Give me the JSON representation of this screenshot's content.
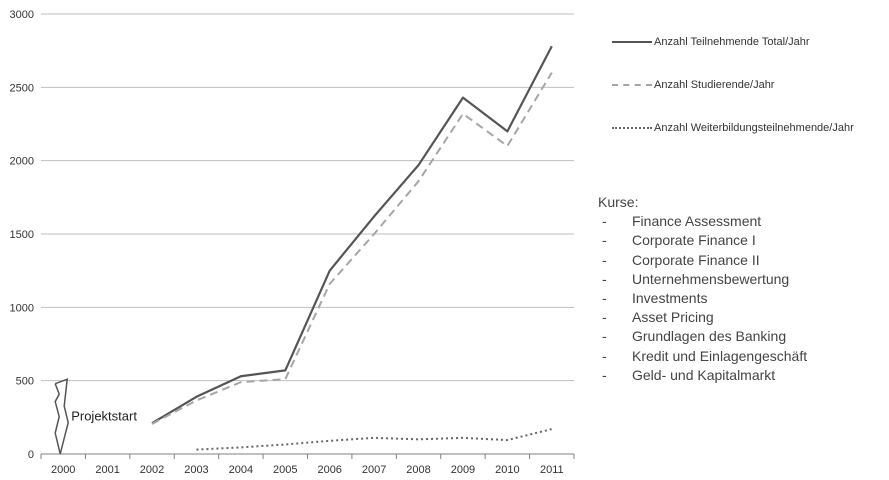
{
  "chart_data": {
    "type": "line",
    "categories": [
      "2000",
      "2001",
      "2002",
      "2003",
      "2004",
      "2005",
      "2006",
      "2007",
      "2008",
      "2009",
      "2010",
      "2011"
    ],
    "ylim": [
      0,
      3000
    ],
    "yticks": [
      "0",
      "500",
      "1000",
      "1500",
      "2000",
      "2500",
      "3000"
    ],
    "grid": true,
    "series": [
      {
        "name": "Anzahl Teilnehmende Total/Jahr",
        "style": "solid",
        "color": "#555555",
        "values": [
          null,
          null,
          210,
          390,
          530,
          570,
          1250,
          1620,
          1970,
          2430,
          2200,
          2780
        ]
      },
      {
        "name": "Anzahl Studierende/Jahr",
        "style": "dashed",
        "color": "#a6a6a6",
        "values": [
          null,
          null,
          205,
          365,
          490,
          510,
          1160,
          1500,
          1860,
          2320,
          2100,
          2600
        ]
      },
      {
        "name": "Anzahl Weiterbildungsteilnehmende/Jahr",
        "style": "dotted",
        "color": "#666666",
        "values": [
          null,
          null,
          null,
          30,
          45,
          65,
          90,
          110,
          100,
          110,
          95,
          170
        ]
      }
    ],
    "annotation": {
      "text": "Projektstart",
      "x": "2000",
      "y_top": 510,
      "y_bottom": 0
    },
    "legend_position": "right"
  },
  "courses": {
    "heading": "Kurse:",
    "bullet": "-",
    "items": [
      "Finance Assessment",
      "Corporate Finance I",
      "Corporate Finance II",
      "Unternehmensbewertung",
      "Investments",
      "Asset Pricing",
      "Grundlagen des Banking",
      "Kredit und Einlagengeschäft",
      "Geld- und Kapitalmarkt"
    ]
  }
}
